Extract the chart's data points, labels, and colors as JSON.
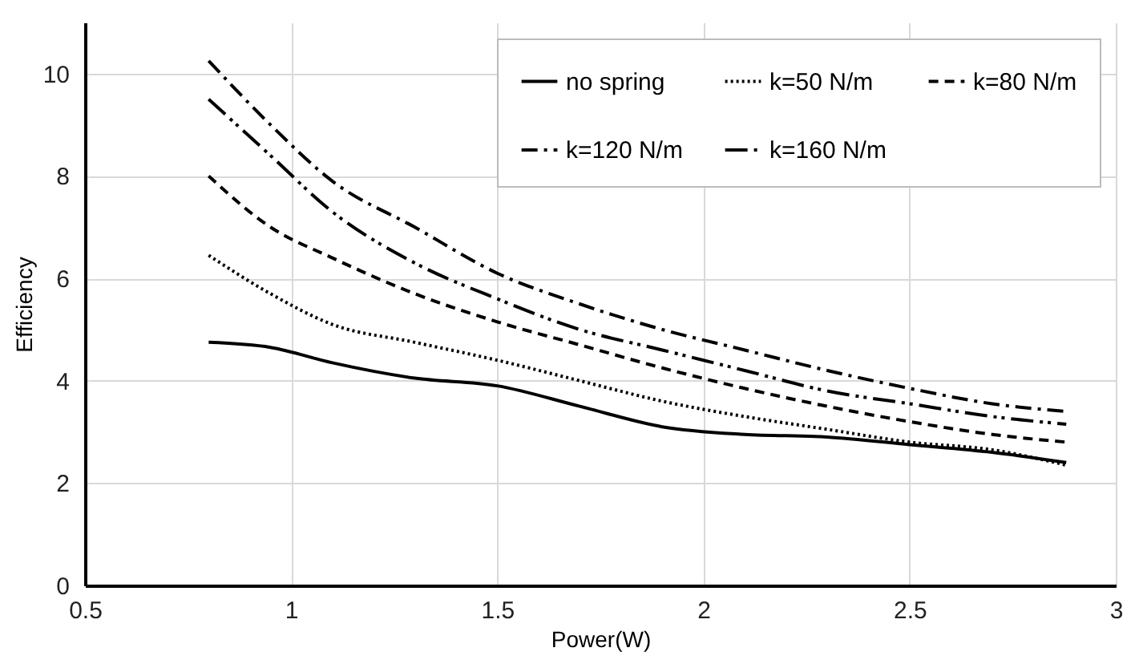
{
  "chart_data": {
    "type": "line",
    "xlabel": "Power(W)",
    "ylabel": "Efficiency",
    "x": [
      0.8,
      0.95,
      1.1,
      1.3,
      1.5,
      1.7,
      1.9,
      2.1,
      2.3,
      2.5,
      2.7,
      2.88
    ],
    "xlim": [
      0.5,
      3
    ],
    "xticks": [
      0.5,
      1,
      1.5,
      2,
      2.5,
      3
    ],
    "ylim": [
      0,
      11
    ],
    "yticks": [
      0,
      2,
      4,
      6,
      8,
      10
    ],
    "grid": true,
    "legend": "top right",
    "marker": "none",
    "series": [
      {
        "name": "no spring",
        "color": "#000000",
        "line_style": "solid",
        "values": [
          4.75,
          4.65,
          4.35,
          4.05,
          3.9,
          3.5,
          3.1,
          2.95,
          2.9,
          2.75,
          2.6,
          2.4
        ]
      },
      {
        "name": "k=50 N/m",
        "color": "#000000",
        "line_style": "dotted",
        "values": [
          6.45,
          5.7,
          5.1,
          4.75,
          4.4,
          4.0,
          3.6,
          3.3,
          3.05,
          2.8,
          2.65,
          2.35
        ]
      },
      {
        "name": "k=80 N/m",
        "color": "#000000",
        "line_style": "dashed",
        "values": [
          8.0,
          7.0,
          6.4,
          5.7,
          5.15,
          4.7,
          4.25,
          3.85,
          3.5,
          3.2,
          2.95,
          2.8
        ]
      },
      {
        "name": "k=120 N/m",
        "color": "#000000",
        "line_style": "dashdot",
        "values": [
          10.25,
          9.0,
          7.9,
          7.0,
          6.1,
          5.5,
          5.0,
          4.6,
          4.2,
          3.85,
          3.55,
          3.4
        ]
      },
      {
        "name": "k=160 N/m",
        "color": "#000000",
        "line_style": "longdashdotdot",
        "values": [
          9.5,
          8.4,
          7.3,
          6.3,
          5.6,
          5.0,
          4.6,
          4.2,
          3.8,
          3.55,
          3.3,
          3.15
        ]
      }
    ]
  }
}
